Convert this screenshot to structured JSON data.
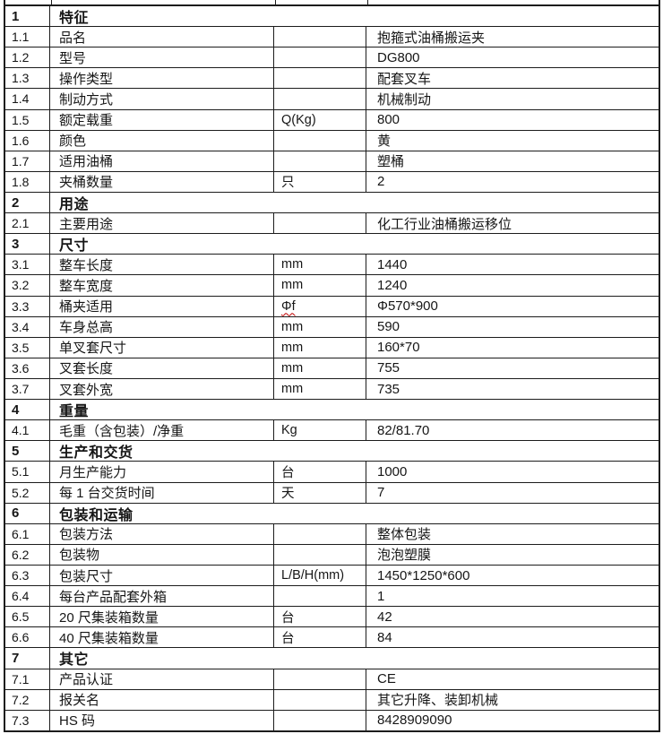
{
  "colors": {
    "background": "#ffffff",
    "border": "#1c1c1c",
    "text": "#161616",
    "spellcheck_squiggle": "#c00000"
  },
  "table": {
    "rows": [
      {
        "no": "1",
        "label": "特征",
        "section": true
      },
      {
        "no": "1.1",
        "label": "品名",
        "unit": "",
        "value": "抱箍式油桶搬运夹"
      },
      {
        "no": "1.2",
        "label": "型号",
        "unit": "",
        "value": "DG800"
      },
      {
        "no": "1.3",
        "label": "操作类型",
        "unit": "",
        "value": "配套叉车"
      },
      {
        "no": "1.4",
        "label": "制动方式",
        "unit": "",
        "value": "机械制动"
      },
      {
        "no": "1.5",
        "label": "额定载重",
        "unit": "Q(Kg)",
        "value": "800"
      },
      {
        "no": "1.6",
        "label": "颜色",
        "unit": "",
        "value": "黄"
      },
      {
        "no": "1.7",
        "label": "适用油桶",
        "unit": "",
        "value": "塑桶"
      },
      {
        "no": "1.8",
        "label": "夹桶数量",
        "unit": "只",
        "value": "2"
      },
      {
        "no": "2",
        "label": "用途",
        "section": true
      },
      {
        "no": "2.1",
        "label": "主要用途",
        "unit": "",
        "value": "化工行业油桶搬运移位"
      },
      {
        "no": "3",
        "label": "尺寸",
        "section": true
      },
      {
        "no": "3.1",
        "label": "整车长度",
        "unit": "mm",
        "value": "1440"
      },
      {
        "no": "3.2",
        "label": "整车宽度",
        "unit": "mm",
        "value": "1240"
      },
      {
        "no": "3.3",
        "label": "桶夹适用",
        "unit": "Φf",
        "value": "Φ570*900",
        "unit_squiggle": true
      },
      {
        "no": "3.4",
        "label": "车身总高",
        "unit": "mm",
        "value": "590"
      },
      {
        "no": "3.5",
        "label": "单叉套尺寸",
        "unit": "mm",
        "value": "160*70"
      },
      {
        "no": "3.6",
        "label": "叉套长度",
        "unit": "mm",
        "value": "755"
      },
      {
        "no": "3.7",
        "label": "叉套外宽",
        "unit": "mm",
        "value": "735"
      },
      {
        "no": "4",
        "label": "重量",
        "section": true
      },
      {
        "no": "4.1",
        "label": "毛重（含包装）/净重",
        "unit": "Kg",
        "value": "82/81.70"
      },
      {
        "no": "5",
        "label": "生产和交货",
        "section": true
      },
      {
        "no": "5.1",
        "label": "月生产能力",
        "unit": "台",
        "value": "1000"
      },
      {
        "no": "5.2",
        "label": "每 1 台交货时间",
        "unit": "天",
        "value": "7"
      },
      {
        "no": "6",
        "label": "包装和运输",
        "section": true
      },
      {
        "no": "6.1",
        "label": "包装方法",
        "unit": "",
        "value": "整体包装"
      },
      {
        "no": "6.2",
        "label": "包装物",
        "unit": "",
        "value": "泡泡塑膜"
      },
      {
        "no": "6.3",
        "label": "包装尺寸",
        "unit": "L/B/H(mm)",
        "value": "1450*1250*600"
      },
      {
        "no": "6.4",
        "label": "每台产品配套外箱",
        "unit": "",
        "value": "1"
      },
      {
        "no": "6.5",
        "label": "20 尺集装箱数量",
        "unit": "台",
        "value": "42"
      },
      {
        "no": "6.6",
        "label": "40 尺集装箱数量",
        "unit": "台",
        "value": "84"
      },
      {
        "no": "7",
        "label": "其它",
        "section": true
      },
      {
        "no": "7.1",
        "label": "产品认证",
        "unit": "",
        "value": "CE"
      },
      {
        "no": "7.2",
        "label": "报关名",
        "unit": "",
        "value": "其它升降、装卸机械"
      },
      {
        "no": "7.3",
        "label": "HS 码",
        "unit": "",
        "value": "8428909090"
      }
    ]
  }
}
